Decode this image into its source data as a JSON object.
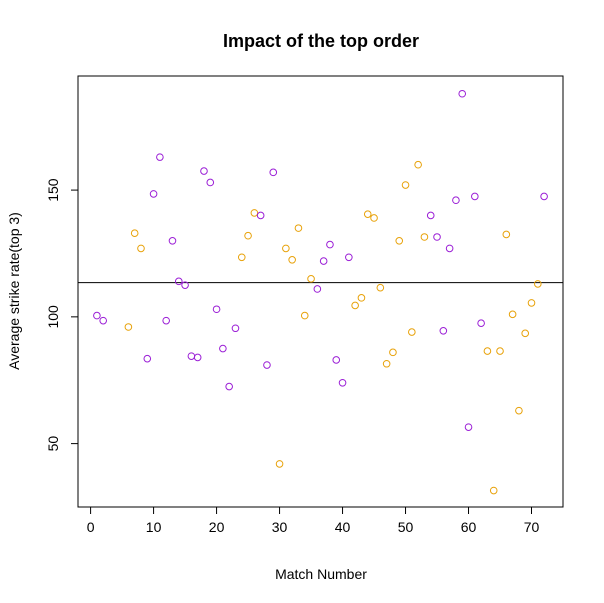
{
  "chart_data": {
    "type": "scatter",
    "title": "Impact of the top order",
    "xlabel": "Match Number",
    "ylabel": "Average strike rate(top 3)",
    "xlim": [
      -2,
      75
    ],
    "ylim": [
      25,
      195
    ],
    "x_ticks": [
      0,
      10,
      20,
      30,
      40,
      50,
      60,
      70
    ],
    "y_ticks": [
      50,
      100,
      150
    ],
    "grid": false,
    "legend": "none",
    "reference_line_y": 113.5,
    "colors": {
      "purple": "#9b1fd6",
      "orange": "#e8a20a",
      "reference": "#000000"
    },
    "points": [
      {
        "x": 1,
        "y": 100.5,
        "color": "purple"
      },
      {
        "x": 2,
        "y": 98.5,
        "color": "purple"
      },
      {
        "x": 6,
        "y": 96,
        "color": "orange"
      },
      {
        "x": 7,
        "y": 133,
        "color": "orange"
      },
      {
        "x": 8,
        "y": 127,
        "color": "orange"
      },
      {
        "x": 9,
        "y": 83.5,
        "color": "purple"
      },
      {
        "x": 10,
        "y": 148.5,
        "color": "purple"
      },
      {
        "x": 11,
        "y": 163,
        "color": "purple"
      },
      {
        "x": 12,
        "y": 98.5,
        "color": "purple"
      },
      {
        "x": 13,
        "y": 130,
        "color": "purple"
      },
      {
        "x": 14,
        "y": 114,
        "color": "purple"
      },
      {
        "x": 15,
        "y": 112.5,
        "color": "purple"
      },
      {
        "x": 16,
        "y": 84.5,
        "color": "purple"
      },
      {
        "x": 17,
        "y": 84,
        "color": "purple"
      },
      {
        "x": 18,
        "y": 157.5,
        "color": "purple"
      },
      {
        "x": 19,
        "y": 153,
        "color": "purple"
      },
      {
        "x": 20,
        "y": 103,
        "color": "purple"
      },
      {
        "x": 21,
        "y": 87.5,
        "color": "purple"
      },
      {
        "x": 22,
        "y": 72.5,
        "color": "purple"
      },
      {
        "x": 23,
        "y": 95.5,
        "color": "purple"
      },
      {
        "x": 24,
        "y": 123.5,
        "color": "orange"
      },
      {
        "x": 25,
        "y": 132,
        "color": "orange"
      },
      {
        "x": 26,
        "y": 141,
        "color": "orange"
      },
      {
        "x": 27,
        "y": 140,
        "color": "purple"
      },
      {
        "x": 28,
        "y": 81,
        "color": "purple"
      },
      {
        "x": 29,
        "y": 157,
        "color": "purple"
      },
      {
        "x": 30,
        "y": 42,
        "color": "orange"
      },
      {
        "x": 31,
        "y": 127,
        "color": "orange"
      },
      {
        "x": 32,
        "y": 122.5,
        "color": "orange"
      },
      {
        "x": 33,
        "y": 135,
        "color": "orange"
      },
      {
        "x": 34,
        "y": 100.5,
        "color": "orange"
      },
      {
        "x": 35,
        "y": 115,
        "color": "orange"
      },
      {
        "x": 36,
        "y": 111,
        "color": "purple"
      },
      {
        "x": 37,
        "y": 122,
        "color": "purple"
      },
      {
        "x": 38,
        "y": 128.5,
        "color": "purple"
      },
      {
        "x": 39,
        "y": 83,
        "color": "purple"
      },
      {
        "x": 40,
        "y": 74,
        "color": "purple"
      },
      {
        "x": 41,
        "y": 123.5,
        "color": "purple"
      },
      {
        "x": 42,
        "y": 104.5,
        "color": "orange"
      },
      {
        "x": 43,
        "y": 107.5,
        "color": "orange"
      },
      {
        "x": 44,
        "y": 140.5,
        "color": "orange"
      },
      {
        "x": 45,
        "y": 139,
        "color": "orange"
      },
      {
        "x": 46,
        "y": 111.5,
        "color": "orange"
      },
      {
        "x": 47,
        "y": 81.5,
        "color": "orange"
      },
      {
        "x": 48,
        "y": 86,
        "color": "orange"
      },
      {
        "x": 49,
        "y": 130,
        "color": "orange"
      },
      {
        "x": 50,
        "y": 152,
        "color": "orange"
      },
      {
        "x": 51,
        "y": 94,
        "color": "orange"
      },
      {
        "x": 52,
        "y": 160,
        "color": "orange"
      },
      {
        "x": 53,
        "y": 131.5,
        "color": "orange"
      },
      {
        "x": 54,
        "y": 140,
        "color": "purple"
      },
      {
        "x": 55,
        "y": 131.5,
        "color": "purple"
      },
      {
        "x": 56,
        "y": 94.5,
        "color": "purple"
      },
      {
        "x": 57,
        "y": 127,
        "color": "purple"
      },
      {
        "x": 58,
        "y": 146,
        "color": "purple"
      },
      {
        "x": 59,
        "y": 188,
        "color": "purple"
      },
      {
        "x": 60,
        "y": 56.5,
        "color": "purple"
      },
      {
        "x": 61,
        "y": 147.5,
        "color": "purple"
      },
      {
        "x": 62,
        "y": 97.5,
        "color": "purple"
      },
      {
        "x": 63,
        "y": 86.5,
        "color": "orange"
      },
      {
        "x": 64,
        "y": 31.5,
        "color": "orange"
      },
      {
        "x": 65,
        "y": 86.5,
        "color": "orange"
      },
      {
        "x": 66,
        "y": 132.5,
        "color": "orange"
      },
      {
        "x": 67,
        "y": 101,
        "color": "orange"
      },
      {
        "x": 68,
        "y": 63,
        "color": "orange"
      },
      {
        "x": 69,
        "y": 93.5,
        "color": "orange"
      },
      {
        "x": 70,
        "y": 105.5,
        "color": "orange"
      },
      {
        "x": 71,
        "y": 113,
        "color": "orange"
      },
      {
        "x": 72,
        "y": 147.5,
        "color": "purple"
      }
    ]
  }
}
